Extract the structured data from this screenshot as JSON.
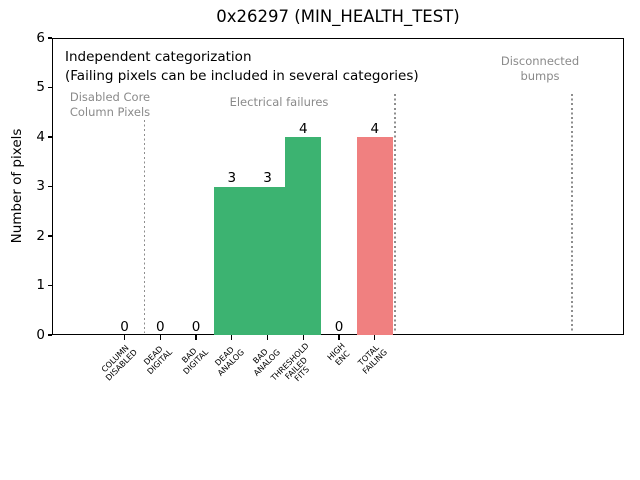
{
  "chart_data": {
    "type": "bar",
    "title": "0x26297 (MIN_HEALTH_TEST)",
    "ylabel": "Number of pixels",
    "xlabel": "",
    "ylim": [
      0,
      6
    ],
    "yticks": [
      "0",
      "1",
      "2",
      "3",
      "4",
      "5",
      "6"
    ],
    "categories": [
      [
        "COLUMN",
        "DISABLED"
      ],
      [
        "DEAD",
        "DIGITAL"
      ],
      [
        "BAD",
        "DIGITAL"
      ],
      [
        "DEAD",
        "ANALOG"
      ],
      [
        "BAD",
        "ANALOG"
      ],
      [
        "THRESHOLD",
        "FAILED",
        "FITS"
      ],
      [
        "HIGH",
        "ENC"
      ],
      [
        "TOTAL",
        "FAILING"
      ]
    ],
    "values": [
      0,
      0,
      0,
      3,
      3,
      4,
      0,
      4
    ],
    "value_labels": [
      "0",
      "0",
      "0",
      "3",
      "3",
      "4",
      "0",
      "4"
    ],
    "bar_colors": [
      "#3CB371",
      "#3CB371",
      "#3CB371",
      "#3CB371",
      "#3CB371",
      "#3CB371",
      "#3CB371",
      "#F08080"
    ],
    "grid": false,
    "legend": null,
    "annotations": {
      "note_line1": "Independent categorization",
      "note_line2": "(Failing pixels can be included in several categories)",
      "sections": [
        {
          "label": "Disabled Core\nColumn Pixels"
        },
        {
          "label": "Electrical failures"
        },
        {
          "label": "Disconnected\nbumps"
        }
      ]
    },
    "colors": {
      "bar_green": "#3CB371",
      "bar_red": "#F08080",
      "section_text_gray": "#8a8a8a",
      "separator_gray": "#8e8e8e"
    }
  }
}
